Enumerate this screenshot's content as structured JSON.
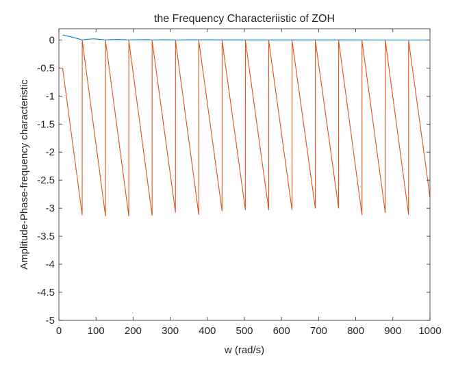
{
  "chart_data": {
    "type": "line",
    "title": "the Frequency Characteriistic of ZOH",
    "xlabel": "w (rad/s)",
    "ylabel": "Amplitude-Phase-frequency characteristic",
    "xlim": [
      0,
      1000
    ],
    "ylim": [
      -5,
      0.2
    ],
    "xticks": [
      0,
      100,
      200,
      300,
      400,
      500,
      600,
      700,
      800,
      900,
      1000
    ],
    "xtick_labels": [
      "0",
      "100",
      "200",
      "300",
      "400",
      "500",
      "600",
      "700",
      "800",
      "900",
      "1000"
    ],
    "yticks": [
      0,
      -0.5,
      -1,
      -1.5,
      -2,
      -2.5,
      -3,
      -3.5,
      -4,
      -4.5,
      -5
    ],
    "ytick_labels": [
      "0",
      "-0.5",
      "-1",
      "-1.5",
      "-2",
      "-2.5",
      "-3",
      "-3.5",
      "-4",
      "-4.5",
      "-5"
    ],
    "grid": false,
    "legend": "none",
    "series": [
      {
        "color": "#0072BD",
        "x": [
          10,
          30,
          50,
          62.8,
          75,
          95,
          115,
          125.7,
          140,
          160,
          180,
          188.5,
          210,
          240,
          251.3,
          280,
          314.2,
          350,
          400,
          500,
          600,
          700,
          800,
          900,
          1000
        ],
        "y": [
          0.09,
          0.06,
          0.025,
          0.0,
          0.012,
          0.02,
          0.008,
          0.0,
          0.006,
          0.009,
          0.004,
          0.0,
          0.004,
          0.005,
          0.0,
          0.004,
          0.0,
          0.002,
          0.002,
          0.001,
          0.001,
          0.001,
          0.001,
          0.0,
          0.0
        ]
      },
      {
        "color": "#D95319",
        "x": [
          10,
          62.8,
          62.9,
          125.6,
          125.7,
          188.4,
          188.5,
          251.2,
          251.3,
          314.1,
          314.2,
          376.9,
          377.0,
          439.7,
          439.8,
          502.5,
          502.6,
          565.4,
          565.5,
          628.2,
          628.3,
          691.0,
          691.1,
          753.8,
          753.9,
          816.7,
          816.8,
          879.5,
          879.6,
          942.3,
          942.4,
          1000
        ],
        "y": [
          -0.5,
          -3.12,
          -0.01,
          -3.14,
          -0.01,
          -3.14,
          -0.01,
          -3.13,
          -0.01,
          -3.07,
          -0.01,
          -3.11,
          -0.01,
          -3.05,
          -0.01,
          -3.03,
          -0.01,
          -3.03,
          -0.01,
          -3.03,
          -0.01,
          -3.0,
          -0.01,
          -3.0,
          -0.01,
          -3.12,
          -0.01,
          -3.08,
          -0.01,
          -3.11,
          -0.01,
          -2.8
        ]
      }
    ]
  }
}
